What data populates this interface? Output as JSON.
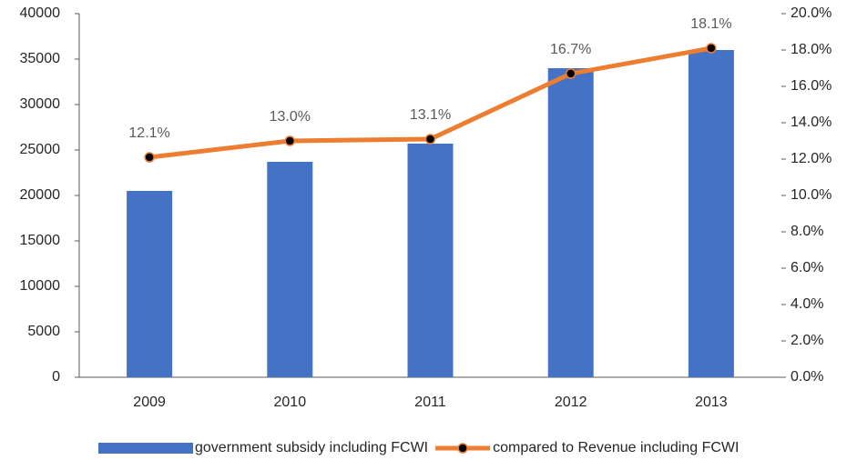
{
  "chart_data": {
    "type": "bar-line",
    "categories": [
      "2009",
      "2010",
      "2011",
      "2012",
      "2013"
    ],
    "series": [
      {
        "name": "government subsidy including FCWI",
        "color": "#4472c4",
        "values": [
          20500,
          23700,
          25700,
          34000,
          36000
        ]
      },
      {
        "name": "compared to Revenue including FCWI",
        "color": "#ed7d31",
        "axis": "y2",
        "values": [
          12.1,
          13.0,
          13.1,
          16.7,
          18.1
        ],
        "value_labels": [
          "12.1%",
          "13.0%",
          "13.1%",
          "16.7%",
          "18.1%"
        ]
      }
    ],
    "ylim": [
      0,
      40000
    ],
    "yticks": [
      0,
      5000,
      10000,
      15000,
      20000,
      25000,
      30000,
      35000,
      40000
    ],
    "y2lim": [
      0,
      20
    ],
    "y2ticks": [
      {
        "value": 0,
        "label": "0.0%"
      },
      {
        "value": 2,
        "label": "2.0%"
      },
      {
        "value": 4,
        "label": "4.0%"
      },
      {
        "value": 6,
        "label": "6.0%"
      },
      {
        "value": 8,
        "label": "8.0%"
      },
      {
        "value": 10,
        "label": "10.0%"
      },
      {
        "value": 12,
        "label": "12.0%"
      },
      {
        "value": 14,
        "label": "14.0%"
      },
      {
        "value": 16,
        "label": "16.0%"
      },
      {
        "value": 18,
        "label": "18.0%"
      },
      {
        "value": 20,
        "label": "20.0%"
      }
    ],
    "legend": "bottom"
  }
}
